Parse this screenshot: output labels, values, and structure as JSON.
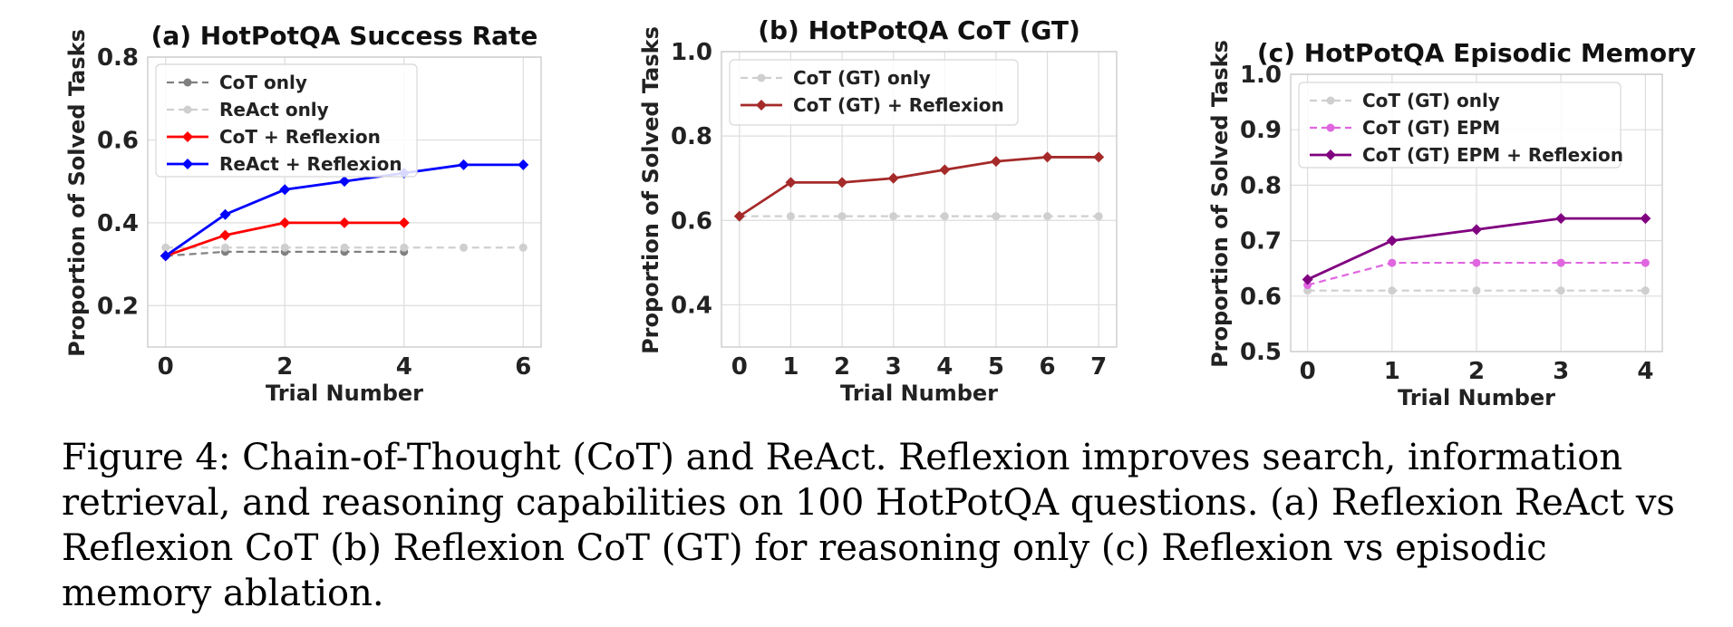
{
  "caption": {
    "text": "Figure 4: Chain-of-Thought (CoT) and ReAct. Reflexion improves search, information retrieval, and reasoning capabilities on 100 HotPotQA questions. (a) Reflexion ReAct vs Reflexion CoT (b) Reflexion CoT (GT) for reasoning only (c) Reflexion vs episodic memory ablation."
  },
  "chart_data": [
    {
      "type": "line",
      "title": "(a) HotPotQA Success Rate",
      "xlabel": "Trial Number",
      "ylabel": "Proportion of Solved Tasks",
      "xlim": [
        -0.3,
        6.3
      ],
      "ylim": [
        0.1,
        0.8
      ],
      "xticks": [
        0,
        2,
        4,
        6
      ],
      "yticks": [
        0.2,
        0.4,
        0.6,
        0.8
      ],
      "grid": true,
      "legend_position": "top-left",
      "series": [
        {
          "name": "CoT only",
          "color": "#808080",
          "dashed": true,
          "marker": "circle",
          "x": [
            0,
            1,
            2,
            3,
            4
          ],
          "values": [
            0.32,
            0.33,
            0.33,
            0.33,
            0.33
          ]
        },
        {
          "name": "ReAct only",
          "color": "#cfcfcf",
          "dashed": true,
          "marker": "circle",
          "x": [
            0,
            1,
            2,
            3,
            4,
            5,
            6
          ],
          "values": [
            0.34,
            0.34,
            0.34,
            0.34,
            0.34,
            0.34,
            0.34
          ]
        },
        {
          "name": "CoT + Reflexion",
          "color": "#ff0000",
          "dashed": false,
          "marker": "diamond",
          "x": [
            0,
            1,
            2,
            3,
            4
          ],
          "values": [
            0.32,
            0.37,
            0.4,
            0.4,
            0.4
          ]
        },
        {
          "name": "ReAct + Reflexion",
          "color": "#0000ff",
          "dashed": false,
          "marker": "diamond",
          "x": [
            0,
            1,
            2,
            3,
            4,
            5,
            6
          ],
          "values": [
            0.32,
            0.42,
            0.48,
            0.5,
            0.52,
            0.54,
            0.54
          ]
        }
      ]
    },
    {
      "type": "line",
      "title": "(b) HotPotQA CoT (GT)",
      "xlabel": "Trial Number",
      "ylabel": "Proportion of Solved Tasks",
      "xlim": [
        -0.35,
        7.35
      ],
      "ylim": [
        0.3,
        1.0
      ],
      "xticks": [
        0,
        1,
        2,
        3,
        4,
        5,
        6,
        7
      ],
      "yticks": [
        0.4,
        0.6,
        0.8,
        1.0
      ],
      "grid": true,
      "legend_position": "top-left",
      "series": [
        {
          "name": "CoT (GT) only",
          "color": "#cfcfcf",
          "dashed": true,
          "marker": "circle",
          "x": [
            0,
            1,
            2,
            3,
            4,
            5,
            6,
            7
          ],
          "values": [
            0.61,
            0.61,
            0.61,
            0.61,
            0.61,
            0.61,
            0.61,
            0.61
          ]
        },
        {
          "name": "CoT (GT) + Reflexion",
          "color": "#a52a2a",
          "dashed": false,
          "marker": "diamond",
          "x": [
            0,
            1,
            2,
            3,
            4,
            5,
            6,
            7
          ],
          "values": [
            0.61,
            0.69,
            0.69,
            0.7,
            0.72,
            0.74,
            0.75,
            0.75
          ]
        }
      ]
    },
    {
      "type": "line",
      "title": "(c) HotPotQA Episodic Memory",
      "xlabel": "Trial Number",
      "ylabel": "Proportion of Solved Tasks",
      "xlim": [
        -0.2,
        4.2
      ],
      "ylim": [
        0.5,
        1.0
      ],
      "xticks": [
        0,
        1,
        2,
        3,
        4
      ],
      "yticks": [
        0.5,
        0.6,
        0.7,
        0.8,
        0.9,
        1.0
      ],
      "grid": true,
      "legend_position": "top-left",
      "series": [
        {
          "name": "CoT (GT) only",
          "color": "#cfcfcf",
          "dashed": true,
          "marker": "circle",
          "x": [
            0,
            1,
            2,
            3,
            4
          ],
          "values": [
            0.61,
            0.61,
            0.61,
            0.61,
            0.61
          ]
        },
        {
          "name": "CoT (GT) EPM",
          "color": "#e066e0",
          "dashed": true,
          "marker": "circle",
          "x": [
            0,
            1,
            2,
            3,
            4
          ],
          "values": [
            0.62,
            0.66,
            0.66,
            0.66,
            0.66
          ]
        },
        {
          "name": "CoT (GT) EPM + Reflexion",
          "color": "#800080",
          "dashed": false,
          "marker": "diamond",
          "x": [
            0,
            1,
            2,
            3,
            4
          ],
          "values": [
            0.63,
            0.7,
            0.72,
            0.74,
            0.74
          ]
        }
      ]
    }
  ]
}
